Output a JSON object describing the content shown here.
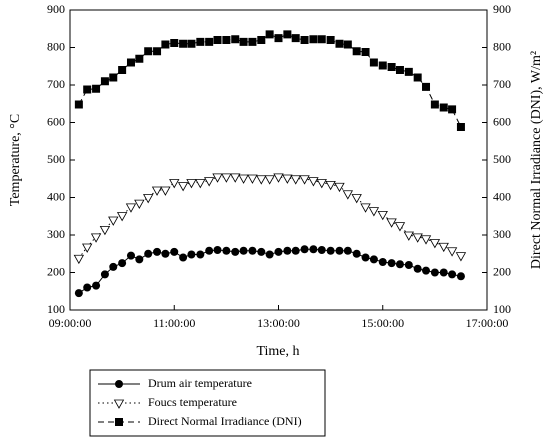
{
  "chart_data": {
    "type": "line",
    "xlabel": "Time, h",
    "ylabel": "Temperature, °C",
    "y2label": "Direct Normal Irradiance (DNI), W/m²",
    "xlim": [
      9,
      17
    ],
    "xticks": [
      {
        "value": 9,
        "label": "09:00:00"
      },
      {
        "value": 11,
        "label": "11:00:00"
      },
      {
        "value": 13,
        "label": "13:00:00"
      },
      {
        "value": 15,
        "label": "15:00:00"
      },
      {
        "value": 17,
        "label": "17:00:00"
      }
    ],
    "ylim": [
      100,
      900
    ],
    "yticks": [
      100,
      200,
      300,
      400,
      500,
      600,
      700,
      800,
      900
    ],
    "y2lim": [
      100,
      900
    ],
    "y2ticks": [
      100,
      200,
      300,
      400,
      500,
      600,
      700,
      800,
      900
    ],
    "x": [
      9.17,
      9.33,
      9.5,
      9.67,
      9.83,
      10,
      10.17,
      10.33,
      10.5,
      10.67,
      10.83,
      11,
      11.17,
      11.33,
      11.5,
      11.67,
      11.83,
      12,
      12.17,
      12.33,
      12.5,
      12.67,
      12.83,
      13,
      13.17,
      13.33,
      13.5,
      13.67,
      13.83,
      14,
      14.17,
      14.33,
      14.5,
      14.67,
      14.83,
      15,
      15.17,
      15.33,
      15.5,
      15.67,
      15.83,
      16,
      16.17,
      16.33,
      16.5
    ],
    "series": [
      {
        "name": "Drum air temperature",
        "color": "#000000",
        "marker": "circle",
        "dash": "solid",
        "values": [
          145,
          160,
          165,
          195,
          215,
          225,
          245,
          235,
          250,
          255,
          250,
          255,
          240,
          248,
          248,
          258,
          260,
          258,
          255,
          258,
          258,
          255,
          248,
          255,
          258,
          258,
          262,
          262,
          260,
          258,
          258,
          258,
          250,
          240,
          235,
          228,
          225,
          222,
          220,
          210,
          205,
          200,
          200,
          195,
          190
        ]
      },
      {
        "name": "Foucs temperature",
        "color": "#000000",
        "marker": "triangle-down",
        "dash": "dotted",
        "values": [
          238,
          268,
          295,
          315,
          340,
          352,
          375,
          385,
          400,
          420,
          420,
          440,
          432,
          440,
          440,
          445,
          455,
          455,
          455,
          452,
          452,
          450,
          450,
          455,
          452,
          450,
          450,
          445,
          440,
          435,
          430,
          410,
          400,
          375,
          365,
          355,
          335,
          325,
          300,
          295,
          290,
          280,
          270,
          258,
          245
        ]
      },
      {
        "name": "Direct Normal Irradiance (DNI)",
        "color": "#000000",
        "marker": "square",
        "dash": "dashed",
        "axis": "y2",
        "values": [
          648,
          688,
          690,
          710,
          720,
          740,
          760,
          770,
          790,
          790,
          808,
          812,
          810,
          810,
          815,
          815,
          820,
          820,
          822,
          815,
          815,
          820,
          835,
          825,
          835,
          825,
          820,
          822,
          822,
          820,
          810,
          808,
          790,
          788,
          760,
          752,
          748,
          740,
          735,
          720,
          695,
          648,
          640,
          635,
          588
        ]
      }
    ]
  }
}
